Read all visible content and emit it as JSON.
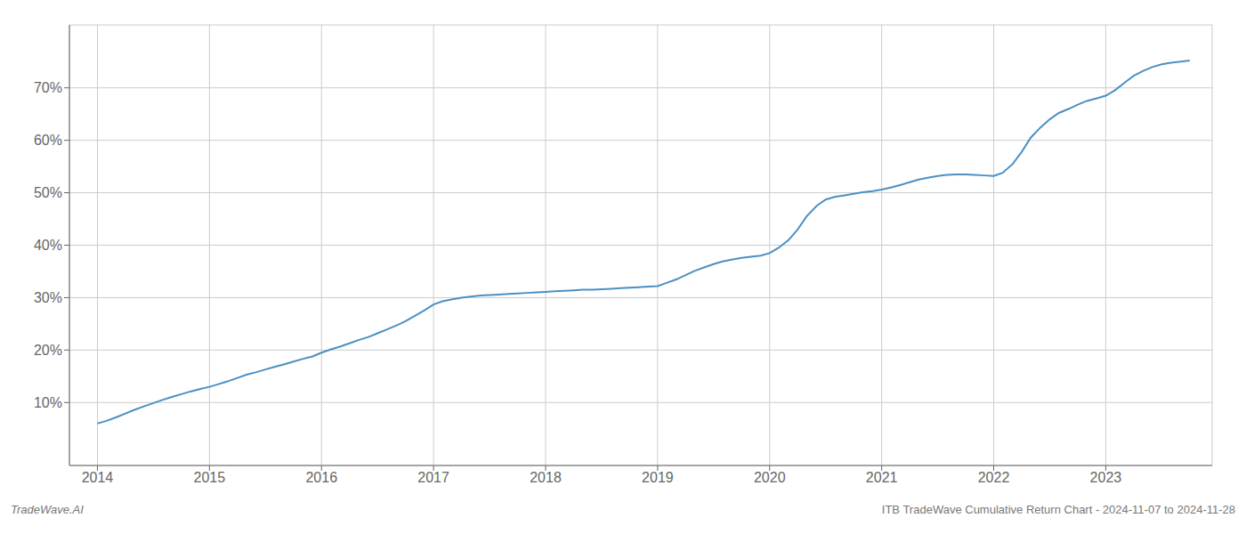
{
  "chart_data": {
    "type": "line",
    "annotations": [
      "TradeWave.AI",
      "ITB TradeWave Cumulative Return Chart - 2024-11-07 to 2024-11-28"
    ],
    "color": "#4a90c4",
    "grid": true,
    "x": [
      2014.0,
      2014.08,
      2014.17,
      2014.25,
      2014.33,
      2014.42,
      2014.5,
      2014.58,
      2014.67,
      2014.75,
      2014.83,
      2014.92,
      2015.0,
      2015.08,
      2015.17,
      2015.25,
      2015.33,
      2015.42,
      2015.5,
      2015.58,
      2015.67,
      2015.75,
      2015.83,
      2015.92,
      2016.0,
      2016.08,
      2016.17,
      2016.25,
      2016.33,
      2016.42,
      2016.5,
      2016.58,
      2016.67,
      2016.75,
      2016.83,
      2016.92,
      2017.0,
      2017.08,
      2017.17,
      2017.25,
      2017.33,
      2017.42,
      2017.5,
      2017.58,
      2017.67,
      2017.75,
      2017.83,
      2017.92,
      2018.0,
      2018.08,
      2018.17,
      2018.25,
      2018.33,
      2018.42,
      2018.5,
      2018.58,
      2018.67,
      2018.75,
      2018.83,
      2018.92,
      2019.0,
      2019.08,
      2019.17,
      2019.25,
      2019.33,
      2019.42,
      2019.5,
      2019.58,
      2019.67,
      2019.75,
      2019.83,
      2019.92,
      2020.0,
      2020.08,
      2020.17,
      2020.25,
      2020.33,
      2020.42,
      2020.5,
      2020.58,
      2020.67,
      2020.75,
      2020.83,
      2020.92,
      2021.0,
      2021.08,
      2021.17,
      2021.25,
      2021.33,
      2021.42,
      2021.5,
      2021.58,
      2021.67,
      2021.75,
      2021.83,
      2021.92,
      2022.0,
      2022.08,
      2022.17,
      2022.25,
      2022.33,
      2022.42,
      2022.5,
      2022.58,
      2022.67,
      2022.75,
      2022.83,
      2022.92,
      2023.0,
      2023.08,
      2023.17,
      2023.25,
      2023.33,
      2023.42,
      2023.5,
      2023.58,
      2023.67,
      2023.75
    ],
    "values": [
      6.0,
      6.5,
      7.2,
      7.9,
      8.6,
      9.3,
      9.9,
      10.5,
      11.1,
      11.6,
      12.1,
      12.6,
      13.0,
      13.5,
      14.1,
      14.7,
      15.3,
      15.8,
      16.3,
      16.8,
      17.3,
      17.8,
      18.3,
      18.8,
      19.5,
      20.1,
      20.7,
      21.3,
      21.9,
      22.5,
      23.2,
      23.9,
      24.7,
      25.5,
      26.5,
      27.6,
      28.7,
      29.3,
      29.7,
      30.0,
      30.2,
      30.4,
      30.5,
      30.6,
      30.7,
      30.8,
      30.9,
      31.0,
      31.1,
      31.2,
      31.3,
      31.4,
      31.5,
      31.5,
      31.6,
      31.7,
      31.8,
      31.9,
      32.0,
      32.1,
      32.2,
      32.8,
      33.5,
      34.3,
      35.1,
      35.8,
      36.4,
      36.9,
      37.3,
      37.6,
      37.8,
      38.0,
      38.5,
      39.5,
      41.0,
      43.0,
      45.5,
      47.5,
      48.7,
      49.2,
      49.5,
      49.8,
      50.1,
      50.3,
      50.6,
      51.0,
      51.5,
      52.0,
      52.5,
      52.9,
      53.2,
      53.4,
      53.5,
      53.5,
      53.4,
      53.3,
      53.2,
      53.8,
      55.5,
      57.8,
      60.5,
      62.5,
      64.0,
      65.2,
      66.0,
      66.8,
      67.5,
      68.0,
      68.5,
      69.5,
      71.0,
      72.3,
      73.2,
      74.0,
      74.5,
      74.8,
      75.0,
      75.2
    ],
    "xlim": [
      2013.75,
      2023.95
    ],
    "ylim": [
      -2,
      82
    ],
    "xticks": [
      2014,
      2015,
      2016,
      2017,
      2018,
      2019,
      2020,
      2021,
      2022,
      2023
    ],
    "yticks": [
      {
        "value": 10,
        "label": "10%"
      },
      {
        "value": 20,
        "label": "20%"
      },
      {
        "value": 30,
        "label": "30%"
      },
      {
        "value": 40,
        "label": "40%"
      },
      {
        "value": 50,
        "label": "50%"
      },
      {
        "value": 60,
        "label": "60%"
      },
      {
        "value": 70,
        "label": "70%"
      }
    ]
  }
}
